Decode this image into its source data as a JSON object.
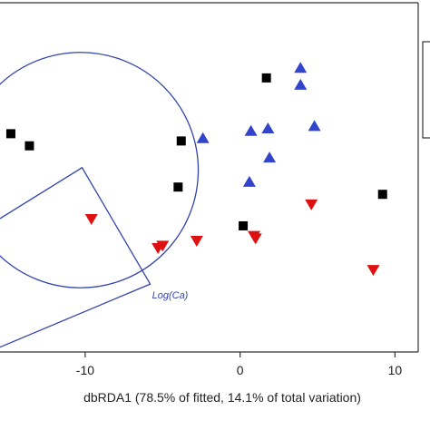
{
  "chart_data": {
    "type": "scatter",
    "title": "",
    "xlabel": "dbRDA1 (78.5% of fitted, 14.1% of total variation)",
    "ylabel": "",
    "xlim": [
      -15.5,
      11.5
    ],
    "ylim": [
      -6.4,
      8.0
    ],
    "x_ticks": [
      -10,
      0,
      10
    ],
    "x_tick_labels": [
      "-10",
      "0",
      "10"
    ],
    "grid": false,
    "legend": "top-right (partially visible, entries cut off)",
    "colors": {
      "axis": "#333333",
      "vector": "#3344aa",
      "square": "#000000",
      "triangle_up": "#3344cc",
      "triangle_down": "#dd1111"
    },
    "series": [
      {
        "marker": "square",
        "points": [
          {
            "x": -14.8,
            "y": 2.6
          },
          {
            "x": -13.6,
            "y": 2.1
          },
          {
            "x": -3.8,
            "y": 2.3
          },
          {
            "x": 1.7,
            "y": 4.9
          },
          {
            "x": -4.0,
            "y": 0.4
          },
          {
            "x": 9.2,
            "y": 0.1
          },
          {
            "x": 0.2,
            "y": -1.2
          }
        ]
      },
      {
        "marker": "triangle-up",
        "points": [
          {
            "x": 3.9,
            "y": 5.3
          },
          {
            "x": 3.9,
            "y": 4.6
          },
          {
            "x": -2.4,
            "y": 2.4
          },
          {
            "x": 0.7,
            "y": 2.7
          },
          {
            "x": 1.8,
            "y": 2.8
          },
          {
            "x": 4.8,
            "y": 2.9
          },
          {
            "x": 1.9,
            "y": 1.6
          },
          {
            "x": 0.6,
            "y": 0.6
          }
        ]
      },
      {
        "marker": "triangle-down",
        "points": [
          {
            "x": -9.6,
            "y": -0.9
          },
          {
            "x": -5.3,
            "y": -2.1
          },
          {
            "x": -5.0,
            "y": -2.0
          },
          {
            "x": -2.8,
            "y": -1.8
          },
          {
            "x": 1.0,
            "y": -1.7
          },
          {
            "x": 0.9,
            "y": -1.6
          },
          {
            "x": 4.6,
            "y": -0.3
          },
          {
            "x": 8.6,
            "y": -3.0
          }
        ]
      }
    ],
    "circle": {
      "center": [
        -10.3,
        1.1
      ],
      "radius": 7.6
    },
    "vector": {
      "label": "Log(Ca)",
      "points": [
        {
          "x": -15.5,
          "y": -0.9
        },
        {
          "x": -10.2,
          "y": 1.2
        },
        {
          "x": -5.8,
          "y": -3.6
        },
        {
          "x": -15.5,
          "y": -6.2
        }
      ]
    }
  }
}
